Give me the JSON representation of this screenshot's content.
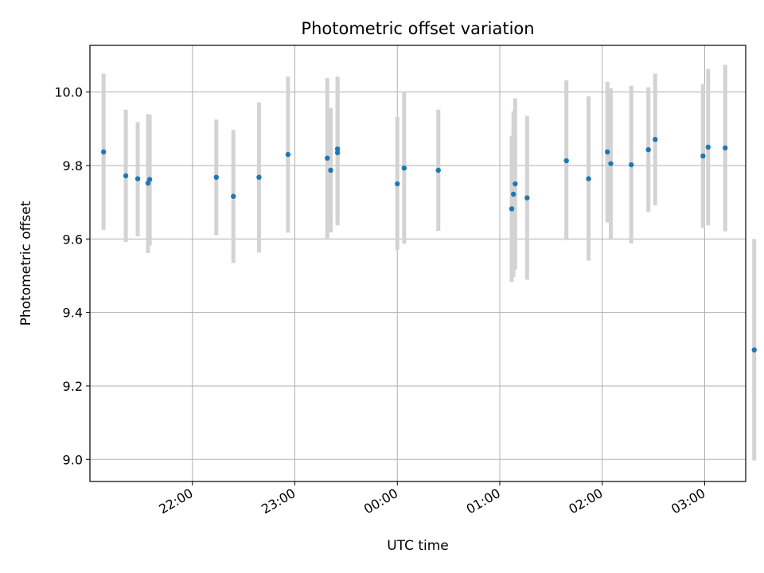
{
  "chart_data": {
    "type": "scatter",
    "title": "Photometric offset variation",
    "xlabel": "UTC time",
    "ylabel": "Photometric offset",
    "xlim": [
      "21:00",
      "03:24"
    ],
    "ylim": [
      8.94,
      10.127
    ],
    "x_tick_labels": [
      "22:00",
      "23:00",
      "00:00",
      "01:00",
      "02:00",
      "03:00"
    ],
    "y_ticks": [
      9.0,
      9.2,
      9.4,
      9.6,
      9.8,
      10.0
    ],
    "y_tick_labels": [
      "9.0",
      "9.2",
      "9.4",
      "9.6",
      "9.8",
      "10.0"
    ],
    "grid": true,
    "colors": {
      "point": "#1f77b4",
      "errorbar": "#d3d3d3",
      "grid": "#b0b0b0"
    },
    "points": [
      {
        "x": "21:08",
        "y": 9.837,
        "ylow": 9.625,
        "yhigh": 10.05
      },
      {
        "x": "21:21",
        "y": 9.772,
        "ylow": 9.592,
        "yhigh": 9.952
      },
      {
        "x": "21:28",
        "y": 9.764,
        "ylow": 9.607,
        "yhigh": 9.918
      },
      {
        "x": "21:34",
        "y": 9.752,
        "ylow": 9.562,
        "yhigh": 9.94
      },
      {
        "x": "21:35",
        "y": 9.762,
        "ylow": 9.582,
        "yhigh": 9.938
      },
      {
        "x": "22:14",
        "y": 9.768,
        "ylow": 9.61,
        "yhigh": 9.925
      },
      {
        "x": "22:24",
        "y": 9.716,
        "ylow": 9.535,
        "yhigh": 9.897
      },
      {
        "x": "22:39",
        "y": 9.768,
        "ylow": 9.563,
        "yhigh": 9.972
      },
      {
        "x": "22:56",
        "y": 9.83,
        "ylow": 9.617,
        "yhigh": 10.042
      },
      {
        "x": "23:19",
        "y": 9.82,
        "ylow": 9.6,
        "yhigh": 10.038
      },
      {
        "x": "23:21",
        "y": 9.787,
        "ylow": 9.618,
        "yhigh": 9.957
      },
      {
        "x": "23:25",
        "y": 9.845,
        "ylow": 9.648,
        "yhigh": 10.042
      },
      {
        "x": "23:25",
        "y": 9.835,
        "ylow": 9.637,
        "yhigh": 10.032
      },
      {
        "x": "00:00",
        "y": 9.75,
        "ylow": 9.57,
        "yhigh": 9.932
      },
      {
        "x": "00:04",
        "y": 9.793,
        "ylow": 9.587,
        "yhigh": 10.002
      },
      {
        "x": "00:24",
        "y": 9.787,
        "ylow": 9.622,
        "yhigh": 9.952
      },
      {
        "x": "01:07",
        "y": 9.682,
        "ylow": 9.483,
        "yhigh": 9.881
      },
      {
        "x": "01:08",
        "y": 9.722,
        "ylow": 9.497,
        "yhigh": 9.947
      },
      {
        "x": "01:09",
        "y": 9.75,
        "ylow": 9.517,
        "yhigh": 9.983
      },
      {
        "x": "01:16",
        "y": 9.712,
        "ylow": 9.489,
        "yhigh": 9.935
      },
      {
        "x": "01:39",
        "y": 9.813,
        "ylow": 9.597,
        "yhigh": 10.032
      },
      {
        "x": "01:52",
        "y": 9.764,
        "ylow": 9.541,
        "yhigh": 9.988
      },
      {
        "x": "02:03",
        "y": 9.837,
        "ylow": 9.645,
        "yhigh": 10.028
      },
      {
        "x": "02:05",
        "y": 9.805,
        "ylow": 9.601,
        "yhigh": 10.01
      },
      {
        "x": "02:17",
        "y": 9.802,
        "ylow": 9.588,
        "yhigh": 10.017
      },
      {
        "x": "02:27",
        "y": 9.843,
        "ylow": 9.673,
        "yhigh": 10.013
      },
      {
        "x": "02:31",
        "y": 9.871,
        "ylow": 9.692,
        "yhigh": 10.05
      },
      {
        "x": "02:59",
        "y": 9.826,
        "ylow": 9.63,
        "yhigh": 10.022
      },
      {
        "x": "03:02",
        "y": 9.85,
        "ylow": 9.637,
        "yhigh": 10.063
      },
      {
        "x": "03:12",
        "y": 9.848,
        "ylow": 9.621,
        "yhigh": 10.074
      },
      {
        "x": "03:29",
        "y": 9.298,
        "ylow": 8.997,
        "yhigh": 9.6
      }
    ]
  }
}
